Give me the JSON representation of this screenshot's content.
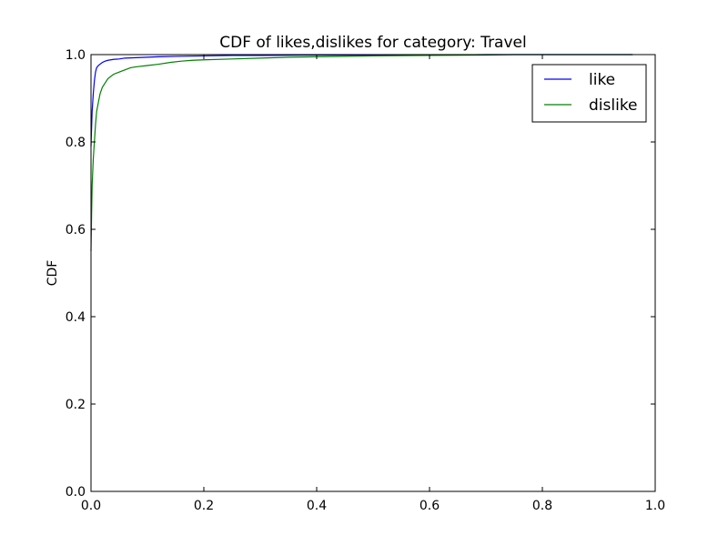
{
  "chart_data": {
    "type": "line",
    "title": "CDF of likes,dislikes for category: Travel",
    "xlabel": "",
    "ylabel": "CDF",
    "xlim": [
      0,
      1.0
    ],
    "ylim": [
      0,
      1.0
    ],
    "x_ticks": [
      "0.0",
      "0.2",
      "0.4",
      "0.6",
      "0.8",
      "1.0"
    ],
    "y_ticks": [
      "0.0",
      "0.2",
      "0.4",
      "0.6",
      "0.8",
      "1.0"
    ],
    "grid": false,
    "legend_position": "top-right",
    "series": [
      {
        "name": "like",
        "color": "#0000ff",
        "x": [
          0.0,
          0.001,
          0.002,
          0.004,
          0.006,
          0.008,
          0.01,
          0.013,
          0.016,
          0.02,
          0.025,
          0.03,
          0.04,
          0.05,
          0.06,
          0.08,
          0.1,
          0.12,
          0.15,
          0.2,
          0.25,
          0.3,
          0.4,
          0.5,
          0.6,
          0.7,
          0.8,
          0.9,
          0.96
        ],
        "y": [
          0.79,
          0.83,
          0.87,
          0.91,
          0.94,
          0.96,
          0.97,
          0.975,
          0.978,
          0.982,
          0.985,
          0.987,
          0.989,
          0.99,
          0.992,
          0.993,
          0.994,
          0.995,
          0.996,
          0.997,
          0.998,
          0.998,
          0.999,
          0.999,
          0.999,
          1.0,
          1.0,
          1.0,
          1.0
        ]
      },
      {
        "name": "dislike",
        "color": "#008000",
        "x": [
          0.0,
          0.001,
          0.002,
          0.004,
          0.006,
          0.008,
          0.01,
          0.013,
          0.016,
          0.02,
          0.025,
          0.03,
          0.04,
          0.05,
          0.06,
          0.07,
          0.08,
          0.1,
          0.12,
          0.14,
          0.16,
          0.18,
          0.2,
          0.25,
          0.3,
          0.35,
          0.4,
          0.5,
          0.6,
          0.7,
          0.75,
          0.8,
          0.9,
          0.96
        ],
        "y": [
          0.55,
          0.63,
          0.7,
          0.76,
          0.8,
          0.84,
          0.87,
          0.89,
          0.91,
          0.925,
          0.935,
          0.945,
          0.955,
          0.96,
          0.965,
          0.97,
          0.972,
          0.975,
          0.978,
          0.982,
          0.985,
          0.987,
          0.988,
          0.99,
          0.992,
          0.994,
          0.995,
          0.997,
          0.998,
          0.999,
          1.0,
          1.0,
          1.0,
          1.0
        ]
      }
    ]
  }
}
